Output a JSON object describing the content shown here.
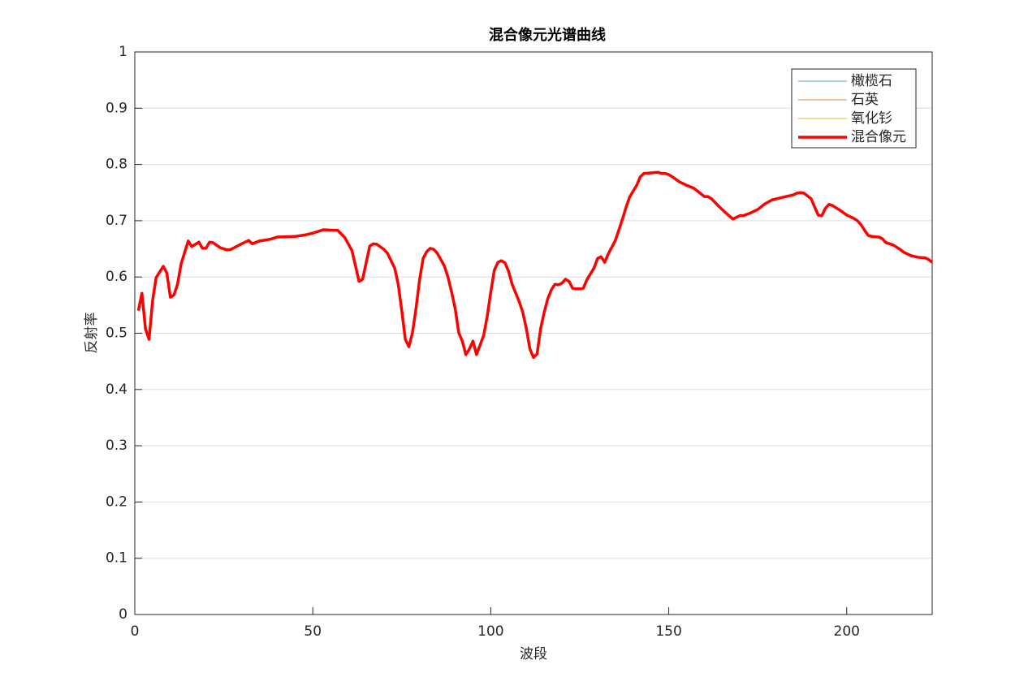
{
  "chart_data": {
    "type": "line",
    "title": "混合像元光谱曲线",
    "x_label": "波段",
    "y_label": "反射率",
    "xlim": [
      0,
      224
    ],
    "ylim": [
      0,
      1
    ],
    "xticks": [
      0,
      50,
      100,
      150,
      200
    ],
    "yticks": [
      0,
      0.1,
      0.2,
      0.3,
      0.4,
      0.5,
      0.6,
      0.7,
      0.8,
      0.9,
      1
    ],
    "grid": true,
    "legend_position": "northeast",
    "legend": [
      {
        "name": "橄榄石",
        "color": "#a9cfe0",
        "visible": false
      },
      {
        "name": "石英",
        "color": "#efc6a6",
        "visible": false
      },
      {
        "name": "氧化钐",
        "color": "#f6da98",
        "visible": false
      },
      {
        "name": "混合像元",
        "color": "#ff0000",
        "visible": true
      }
    ],
    "x": [
      1,
      2,
      3,
      4,
      5,
      6,
      8,
      9,
      10,
      11,
      12,
      13,
      15,
      16,
      18,
      19,
      20,
      21,
      22,
      24,
      26,
      27,
      30,
      32,
      33,
      35,
      38,
      40,
      45,
      48,
      50,
      51,
      53,
      56,
      57,
      59,
      61,
      62,
      63,
      64,
      66,
      67,
      68,
      70,
      71,
      73,
      74,
      75,
      76,
      77,
      78,
      79,
      80,
      81,
      82,
      83,
      84,
      85,
      87,
      88,
      89,
      90,
      91,
      92,
      93,
      94,
      95,
      96,
      97,
      98,
      99,
      100,
      101,
      102,
      103,
      104,
      105,
      106,
      108,
      109,
      110,
      111,
      112,
      113,
      114,
      115,
      116,
      117,
      118,
      119,
      120,
      121,
      122,
      123,
      124,
      125,
      126,
      127,
      129,
      130,
      131,
      132,
      133,
      135,
      137,
      138,
      139,
      141,
      142,
      143,
      145,
      147,
      148,
      149,
      150,
      151,
      153,
      155,
      157,
      158,
      160,
      161,
      162,
      164,
      166,
      168,
      169,
      170,
      171,
      173,
      175,
      177,
      179,
      181,
      183,
      185,
      186,
      187,
      188,
      190,
      191,
      192,
      193,
      194,
      195,
      196,
      198,
      200,
      202,
      203,
      204,
      205,
      206,
      207,
      209,
      210,
      211,
      213,
      215,
      216,
      218,
      220,
      222,
      223,
      224
    ],
    "series": [
      {
        "name": "混合像元",
        "color": "#ff0000",
        "values": [
          0.54,
          0.571,
          0.508,
          0.489,
          0.558,
          0.599,
          0.619,
          0.607,
          0.564,
          0.568,
          0.587,
          0.623,
          0.664,
          0.654,
          0.662,
          0.651,
          0.651,
          0.662,
          0.661,
          0.652,
          0.648,
          0.649,
          0.659,
          0.665,
          0.659,
          0.664,
          0.667,
          0.671,
          0.672,
          0.675,
          0.678,
          0.68,
          0.684,
          0.683,
          0.683,
          0.67,
          0.647,
          0.62,
          0.592,
          0.596,
          0.655,
          0.659,
          0.658,
          0.649,
          0.642,
          0.616,
          0.587,
          0.54,
          0.489,
          0.476,
          0.501,
          0.544,
          0.595,
          0.633,
          0.645,
          0.651,
          0.649,
          0.642,
          0.619,
          0.599,
          0.573,
          0.544,
          0.501,
          0.486,
          0.462,
          0.472,
          0.486,
          0.462,
          0.479,
          0.496,
          0.53,
          0.573,
          0.612,
          0.626,
          0.629,
          0.625,
          0.61,
          0.587,
          0.556,
          0.537,
          0.508,
          0.472,
          0.457,
          0.463,
          0.508,
          0.537,
          0.561,
          0.577,
          0.587,
          0.586,
          0.589,
          0.596,
          0.592,
          0.58,
          0.579,
          0.579,
          0.58,
          0.595,
          0.616,
          0.633,
          0.636,
          0.626,
          0.641,
          0.665,
          0.703,
          0.724,
          0.742,
          0.763,
          0.778,
          0.784,
          0.785,
          0.786,
          0.784,
          0.784,
          0.782,
          0.778,
          0.769,
          0.763,
          0.758,
          0.753,
          0.743,
          0.743,
          0.739,
          0.726,
          0.714,
          0.703,
          0.706,
          0.709,
          0.709,
          0.714,
          0.72,
          0.73,
          0.737,
          0.74,
          0.743,
          0.746,
          0.749,
          0.75,
          0.749,
          0.739,
          0.724,
          0.71,
          0.709,
          0.722,
          0.729,
          0.727,
          0.719,
          0.71,
          0.704,
          0.7,
          0.693,
          0.683,
          0.674,
          0.672,
          0.671,
          0.668,
          0.661,
          0.657,
          0.649,
          0.644,
          0.638,
          0.635,
          0.634,
          0.631,
          0.626
        ]
      }
    ]
  }
}
